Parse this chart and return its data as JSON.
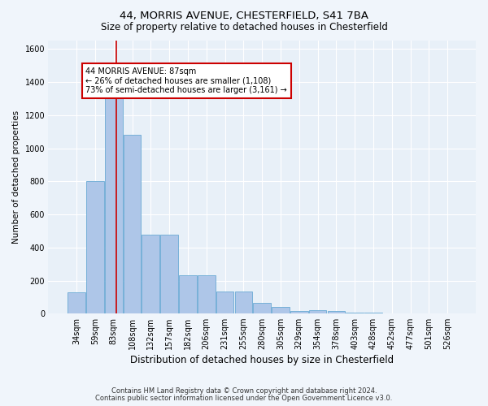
{
  "title1": "44, MORRIS AVENUE, CHESTERFIELD, S41 7BA",
  "title2": "Size of property relative to detached houses in Chesterfield",
  "xlabel": "Distribution of detached houses by size in Chesterfield",
  "ylabel": "Number of detached properties",
  "categories": [
    "34sqm",
    "59sqm",
    "83sqm",
    "108sqm",
    "132sqm",
    "157sqm",
    "182sqm",
    "206sqm",
    "231sqm",
    "255sqm",
    "280sqm",
    "305sqm",
    "329sqm",
    "354sqm",
    "378sqm",
    "403sqm",
    "428sqm",
    "452sqm",
    "477sqm",
    "501sqm",
    "526sqm"
  ],
  "values": [
    130,
    800,
    1300,
    1080,
    480,
    480,
    230,
    230,
    135,
    135,
    65,
    40,
    15,
    20,
    15,
    5,
    5,
    3,
    3,
    3,
    3
  ],
  "bar_color": "#aec6e8",
  "bar_edge_color": "#6aaad4",
  "vline_color": "#cc0000",
  "vline_pos": 2.15,
  "annotation_text": "44 MORRIS AVENUE: 87sqm\n← 26% of detached houses are smaller (1,108)\n73% of semi-detached houses are larger (3,161) →",
  "annotation_box_facecolor": "#ffffff",
  "annotation_box_edgecolor": "#cc0000",
  "ylim": [
    0,
    1650
  ],
  "yticks": [
    0,
    200,
    400,
    600,
    800,
    1000,
    1200,
    1400,
    1600
  ],
  "footer1": "Contains HM Land Registry data © Crown copyright and database right 2024.",
  "footer2": "Contains public sector information licensed under the Open Government Licence v3.0.",
  "bg_color": "#f0f5fb",
  "plot_bg_color": "#e8f0f8",
  "grid_color": "#ffffff",
  "title1_fontsize": 9.5,
  "title2_fontsize": 8.5,
  "xlabel_fontsize": 8.5,
  "ylabel_fontsize": 7.5,
  "tick_fontsize": 7,
  "annotation_fontsize": 7,
  "footer_fontsize": 6
}
